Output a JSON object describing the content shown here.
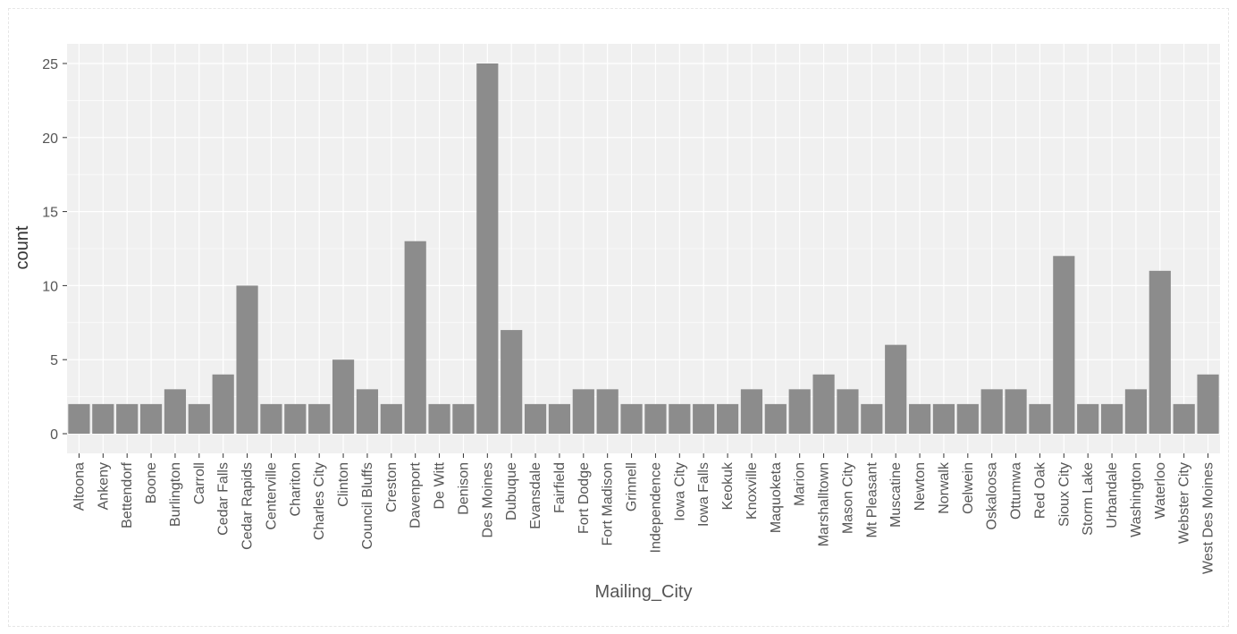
{
  "chart_data": {
    "type": "bar",
    "xlabel": "Mailing_City",
    "ylabel": "count",
    "ylim": [
      0,
      26.2
    ],
    "yticks": [
      0,
      5,
      10,
      15,
      20,
      25
    ],
    "grid": true,
    "colors": {
      "bar": "#8c8c8c",
      "panel": "#f0f0f0",
      "grid": "#ffffff",
      "text": "#555555"
    },
    "categories": [
      "Altoona",
      "Ankeny",
      "Bettendorf",
      "Boone",
      "Burlington",
      "Carroll",
      "Cedar Falls",
      "Cedar Rapids",
      "Centerville",
      "Chariton",
      "Charles City",
      "Clinton",
      "Council Bluffs",
      "Creston",
      "Davenport",
      "De Witt",
      "Denison",
      "Des Moines",
      "Dubuque",
      "Evansdale",
      "Fairfield",
      "Fort Dodge",
      "Fort Madison",
      "Grinnell",
      "Independence",
      "Iowa City",
      "Iowa Falls",
      "Keokuk",
      "Knoxville",
      "Maquoketa",
      "Marion",
      "Marshalltown",
      "Mason City",
      "Mt Pleasant",
      "Muscatine",
      "Newton",
      "Norwalk",
      "Oelwein",
      "Oskaloosa",
      "Ottumwa",
      "Red Oak",
      "Sioux City",
      "Storm Lake",
      "Urbandale",
      "Washington",
      "Waterloo",
      "Webster City",
      "West Des Moines"
    ],
    "values": [
      2,
      2,
      2,
      2,
      3,
      2,
      4,
      10,
      2,
      2,
      2,
      5,
      3,
      2,
      13,
      2,
      2,
      25,
      7,
      2,
      2,
      3,
      3,
      2,
      2,
      2,
      2,
      2,
      3,
      2,
      3,
      4,
      3,
      2,
      6,
      2,
      2,
      2,
      3,
      3,
      2,
      12,
      2,
      2,
      3,
      11,
      2,
      4
    ]
  }
}
